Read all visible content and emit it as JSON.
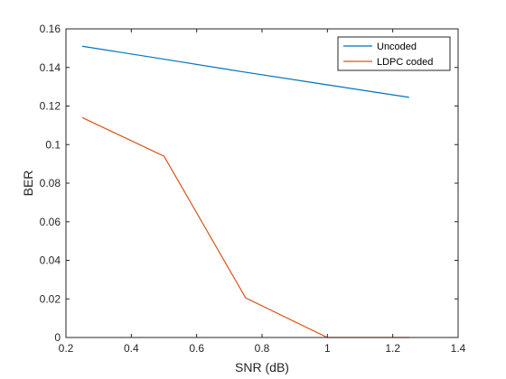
{
  "chart_data": {
    "type": "line",
    "title": "",
    "xlabel": "SNR (dB)",
    "ylabel": "BER",
    "xlim": [
      0.2,
      1.4
    ],
    "ylim": [
      0,
      0.16
    ],
    "xticks": [
      0.2,
      0.4,
      0.6,
      0.8,
      1,
      1.2,
      1.4
    ],
    "xtick_labels": [
      "0.2",
      "0.4",
      "0.6",
      "0.8",
      "1",
      "1.2",
      "1.4"
    ],
    "yticks": [
      0,
      0.02,
      0.04,
      0.06,
      0.08,
      0.1,
      0.12,
      0.14,
      0.16
    ],
    "ytick_labels": [
      "0",
      "0.02",
      "0.04",
      "0.06",
      "0.08",
      "0.1",
      "0.12",
      "0.14",
      "0.16"
    ],
    "grid": false,
    "legend_position": "top-right",
    "series": [
      {
        "name": "Uncoded",
        "color": "#0072bd",
        "x": [
          0.25,
          0.5,
          0.75,
          1.0,
          1.25
        ],
        "y": [
          0.151,
          0.1443,
          0.1375,
          0.131,
          0.1245
        ]
      },
      {
        "name": "LDPC coded",
        "color": "#d95319",
        "x": [
          0.25,
          0.5,
          0.75,
          1.0,
          1.25
        ],
        "y": [
          0.114,
          0.094,
          0.0205,
          0.0,
          0.0
        ]
      }
    ]
  }
}
